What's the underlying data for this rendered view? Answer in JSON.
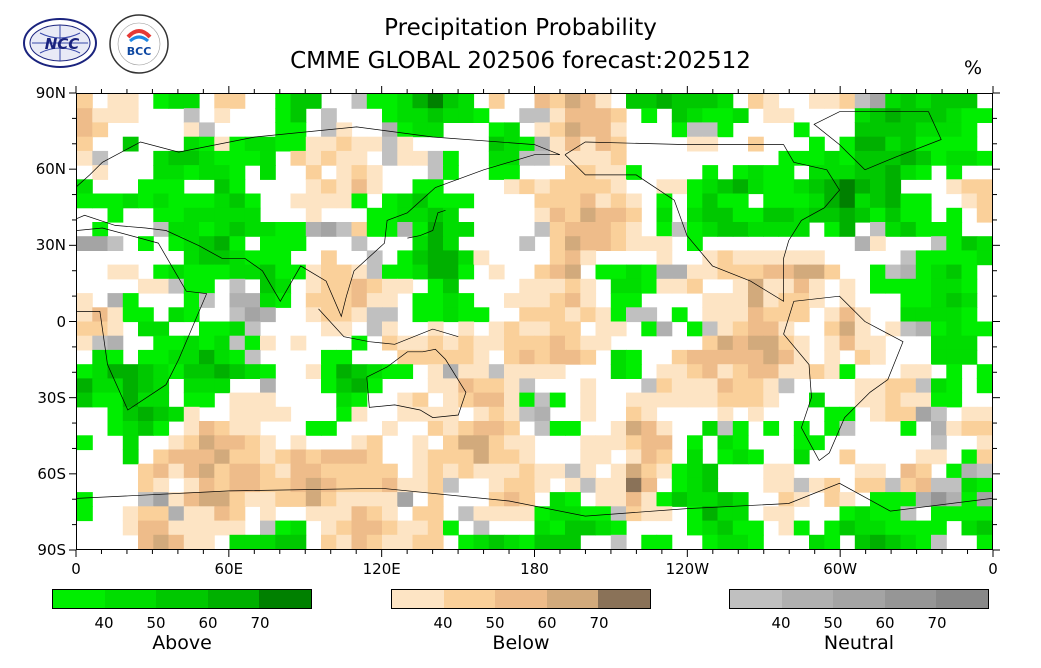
{
  "title_line1": "Precipitation Probability",
  "title_line2": "CMME GLOBAL 202506 forecast:202512",
  "unit": "%",
  "logos": [
    {
      "name": "ncc-logo",
      "text": "NCC"
    },
    {
      "name": "bcc-logo",
      "text": "BCC"
    }
  ],
  "lat_labels": [
    "90N",
    "60N",
    "30N",
    "0",
    "30S",
    "60S",
    "90S"
  ],
  "lon_labels": [
    "0",
    "60E",
    "120E",
    "180",
    "120W",
    "60W",
    "0"
  ],
  "colorbars": [
    {
      "name": "Above",
      "ticks": [
        "40",
        "50",
        "60",
        "70"
      ],
      "colors": [
        "#00ee00",
        "#00dd00",
        "#00c800",
        "#00b000",
        "#008000"
      ]
    },
    {
      "name": "Below",
      "ticks": [
        "40",
        "50",
        "60",
        "70"
      ],
      "colors": [
        "#fde4c4",
        "#fad09a",
        "#eebc8a",
        "#d2aa7c",
        "#8a7258"
      ]
    },
    {
      "name": "Neutral",
      "ticks": [
        "40",
        "50",
        "60",
        "70"
      ],
      "colors": [
        "#c0c0c0",
        "#b0b0b0",
        "#a4a4a4",
        "#969696",
        "#888888"
      ]
    }
  ],
  "colors": {
    "above": "#00dd00",
    "below": "#f0c896",
    "neutral": "#9c9c9c",
    "coast": "#000000"
  }
}
